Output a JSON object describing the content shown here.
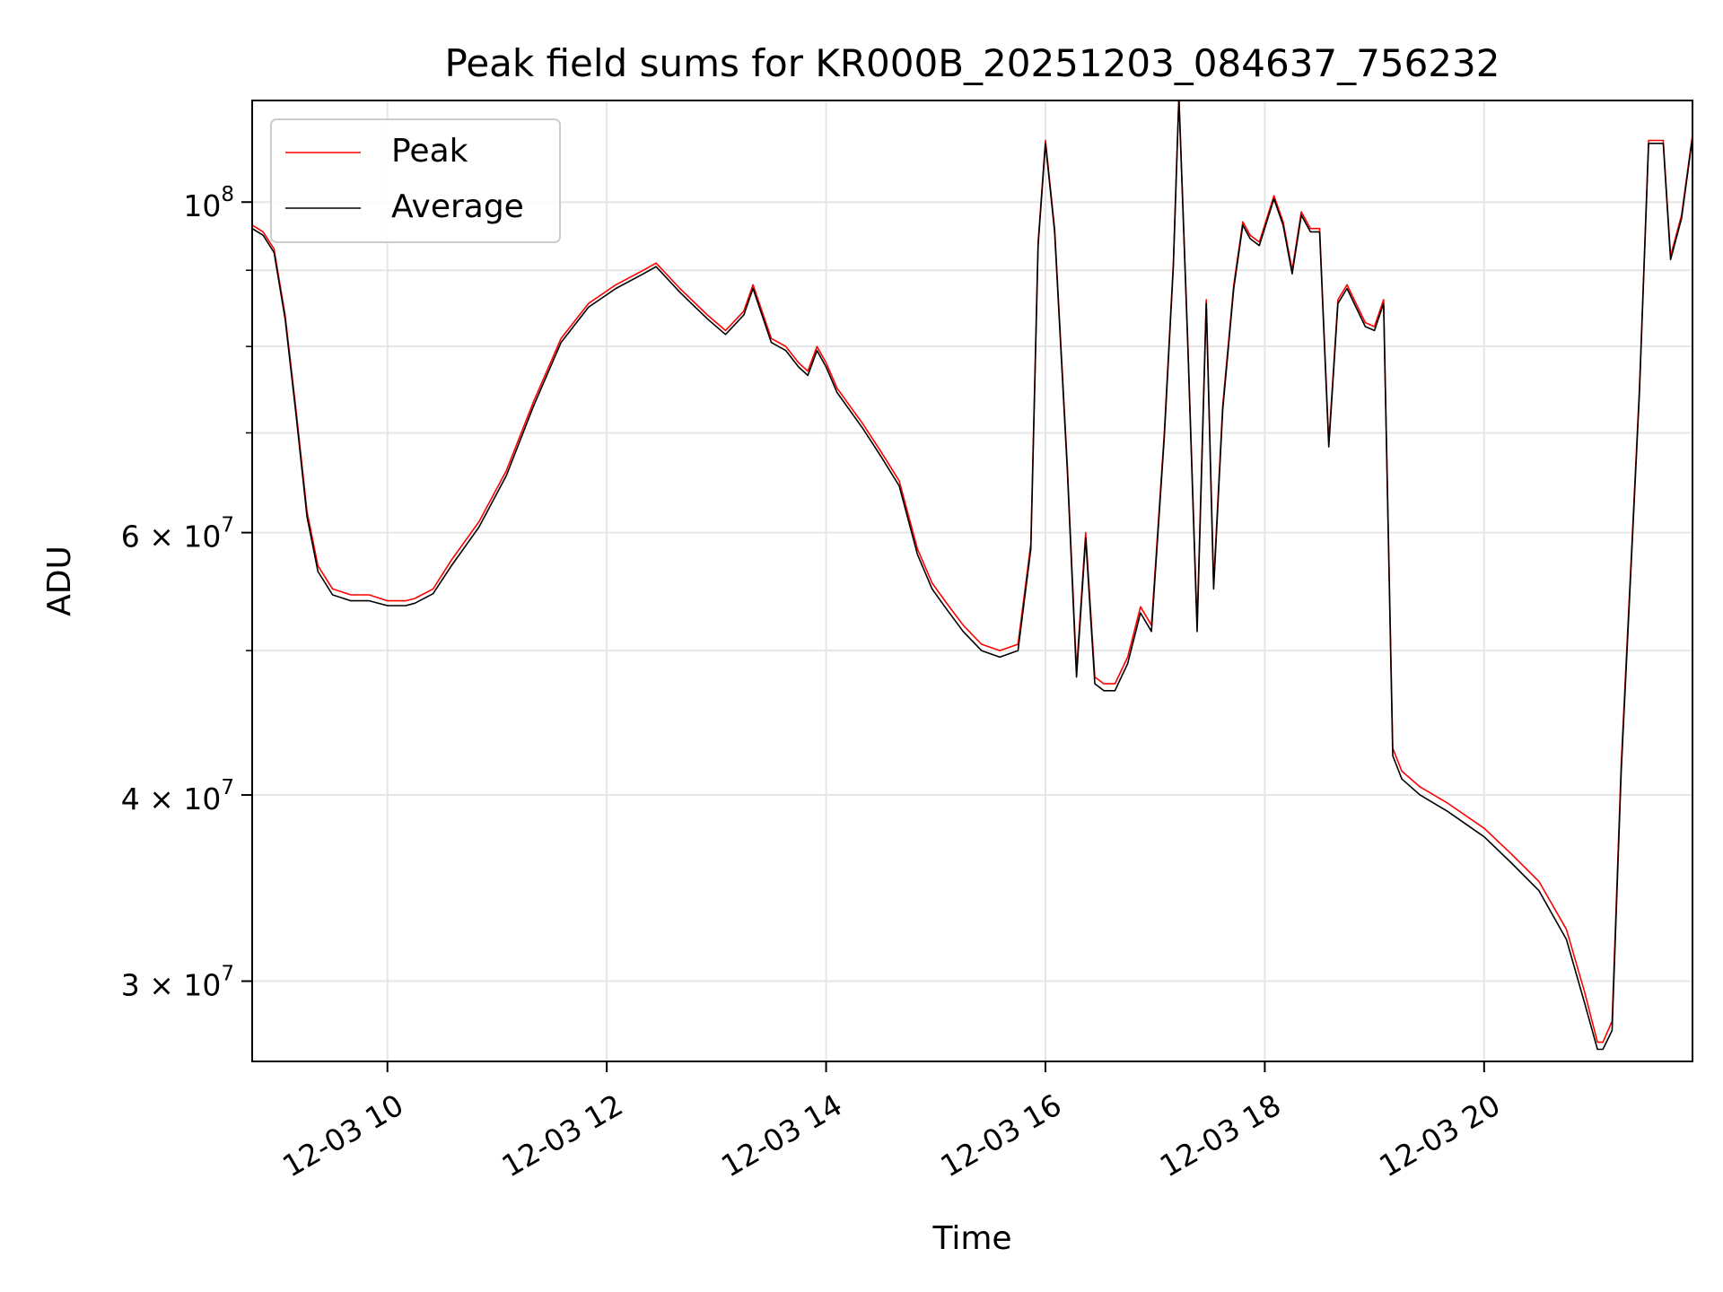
{
  "chart_data": {
    "type": "line",
    "title": "Peak field sums for KR000B_20251203_084637_756232",
    "xlabel": "Time",
    "ylabel": "ADU",
    "y_scale": "log",
    "ylim": [
      26500000,
      117000000
    ],
    "xlim": [
      "12-03 08:46",
      "12-03 21:54"
    ],
    "grid": true,
    "legend_position": "top-left",
    "x_ticks": [
      {
        "time": "12-03 10:00",
        "label": "12-03 10"
      },
      {
        "time": "12-03 12:00",
        "label": "12-03 12"
      },
      {
        "time": "12-03 14:00",
        "label": "12-03 14"
      },
      {
        "time": "12-03 16:00",
        "label": "12-03 16"
      },
      {
        "time": "12-03 18:00",
        "label": "12-03 18"
      },
      {
        "time": "12-03 20:00",
        "label": "12-03 20"
      }
    ],
    "y_ticks": [
      {
        "value": 30000000,
        "label": "3 × 10^7"
      },
      {
        "value": 40000000,
        "label": "4 × 10^7"
      },
      {
        "value": 60000000,
        "label": "6 × 10^7"
      },
      {
        "value": 100000000,
        "label": "10^8"
      }
    ],
    "y_minor_ticks": [
      50000000,
      70000000,
      80000000,
      90000000
    ],
    "x": [
      "12-03 08:46",
      "12-03 08:52",
      "12-03 08:58",
      "12-03 09:04",
      "12-03 09:10",
      "12-03 09:16",
      "12-03 09:22",
      "12-03 09:30",
      "12-03 09:40",
      "12-03 09:50",
      "12-03 10:00",
      "12-03 10:10",
      "12-03 10:15",
      "12-03 10:25",
      "12-03 10:35",
      "12-03 10:50",
      "12-03 11:05",
      "12-03 11:20",
      "12-03 11:35",
      "12-03 11:50",
      "12-03 12:05",
      "12-03 12:20",
      "12-03 12:27",
      "12-03 12:40",
      "12-03 12:55",
      "12-03 13:05",
      "12-03 13:15",
      "12-03 13:20",
      "12-03 13:30",
      "12-03 13:38",
      "12-03 13:45",
      "12-03 13:50",
      "12-03 13:55",
      "12-03 14:00",
      "12-03 14:06",
      "12-03 14:20",
      "12-03 14:30",
      "12-03 14:40",
      "12-03 14:50",
      "12-03 14:58",
      "12-03 15:05",
      "12-03 15:15",
      "12-03 15:25",
      "12-03 15:35",
      "12-03 15:45",
      "12-03 15:52",
      "12-03 15:56",
      "12-03 16:00",
      "12-03 16:05",
      "12-03 16:12",
      "12-03 16:17",
      "12-03 16:22",
      "12-03 16:27",
      "12-03 16:32",
      "12-03 16:38",
      "12-03 16:45",
      "12-03 16:52",
      "12-03 16:58",
      "12-03 17:05",
      "12-03 17:10",
      "12-03 17:13",
      "12-03 17:18",
      "12-03 17:23",
      "12-03 17:28",
      "12-03 17:32",
      "12-03 17:37",
      "12-03 17:43",
      "12-03 17:48",
      "12-03 17:52",
      "12-03 17:57",
      "12-03 18:05",
      "12-03 18:10",
      "12-03 18:15",
      "12-03 18:20",
      "12-03 18:25",
      "12-03 18:30",
      "12-03 18:35",
      "12-03 18:40",
      "12-03 18:45",
      "12-03 18:55",
      "12-03 19:00",
      "12-03 19:05",
      "12-03 19:10",
      "12-03 19:15",
      "12-03 19:25",
      "12-03 19:40",
      "12-03 20:00",
      "12-03 20:15",
      "12-03 20:30",
      "12-03 20:45",
      "12-03 20:55",
      "12-03 21:02",
      "12-03 21:05",
      "12-03 21:10",
      "12-03 21:15",
      "12-03 21:25",
      "12-03 21:30",
      "12-03 21:38",
      "12-03 21:42",
      "12-03 21:48",
      "12-03 21:54"
    ],
    "series": [
      {
        "name": "Peak",
        "color": "#ff0000",
        "values": [
          96500000,
          95500000,
          93000000,
          84000000,
          72500000,
          62000000,
          57000000,
          55000000,
          54500000,
          54500000,
          54000000,
          54000000,
          54200000,
          55000000,
          57500000,
          61000000,
          66000000,
          73500000,
          81000000,
          85500000,
          88000000,
          90000000,
          91000000,
          87500000,
          84000000,
          82000000,
          84500000,
          88000000,
          81000000,
          80000000,
          78000000,
          77000000,
          80000000,
          78000000,
          75000000,
          71000000,
          68000000,
          65000000,
          58500000,
          55500000,
          54000000,
          52000000,
          50500000,
          50000000,
          50500000,
          59000000,
          94000000,
          110000000,
          96000000,
          66500000,
          48500000,
          60000000,
          48000000,
          47500000,
          47500000,
          49500000,
          53500000,
          52000000,
          70000000,
          91000000,
          118000000,
          80000000,
          52000000,
          86000000,
          55500000,
          73000000,
          88000000,
          97000000,
          95000000,
          94000000,
          101000000,
          97000000,
          90000000,
          98500000,
          96000000,
          96000000,
          69000000,
          86000000,
          88000000,
          83000000,
          82500000,
          86000000,
          43000000,
          41500000,
          40500000,
          39500000,
          38000000,
          36500000,
          35000000,
          32500000,
          29500000,
          27300000,
          27300000,
          28200000,
          42000000,
          75000000,
          110000000,
          110000000,
          92000000,
          98000000,
          111000000
        ]
      },
      {
        "name": "Average",
        "color": "#000000",
        "values": [
          96000000,
          95000000,
          92500000,
          83500000,
          72000000,
          61500000,
          56500000,
          54500000,
          54000000,
          54000000,
          53600000,
          53600000,
          53800000,
          54600000,
          57000000,
          60500000,
          65500000,
          73000000,
          80500000,
          85000000,
          87500000,
          89500000,
          90500000,
          87000000,
          83500000,
          81500000,
          84000000,
          87500000,
          80500000,
          79500000,
          77500000,
          76500000,
          79500000,
          77500000,
          74500000,
          70500000,
          67500000,
          64500000,
          58000000,
          55000000,
          53500000,
          51500000,
          50000000,
          49500000,
          50000000,
          58500000,
          93500000,
          109500000,
          95500000,
          66000000,
          48000000,
          59500000,
          47500000,
          47000000,
          47000000,
          49000000,
          53000000,
          51500000,
          69500000,
          90500000,
          117500000,
          79500000,
          51500000,
          85500000,
          55000000,
          72500000,
          87500000,
          96500000,
          94500000,
          93500000,
          100500000,
          96500000,
          89500000,
          98000000,
          95500000,
          95500000,
          68500000,
          85500000,
          87500000,
          82500000,
          82000000,
          85500000,
          42500000,
          41000000,
          40000000,
          39000000,
          37500000,
          36000000,
          34500000,
          32000000,
          29000000,
          27000000,
          27000000,
          27800000,
          41500000,
          74500000,
          109500000,
          109500000,
          91500000,
          97500000,
          110500000
        ]
      }
    ]
  }
}
